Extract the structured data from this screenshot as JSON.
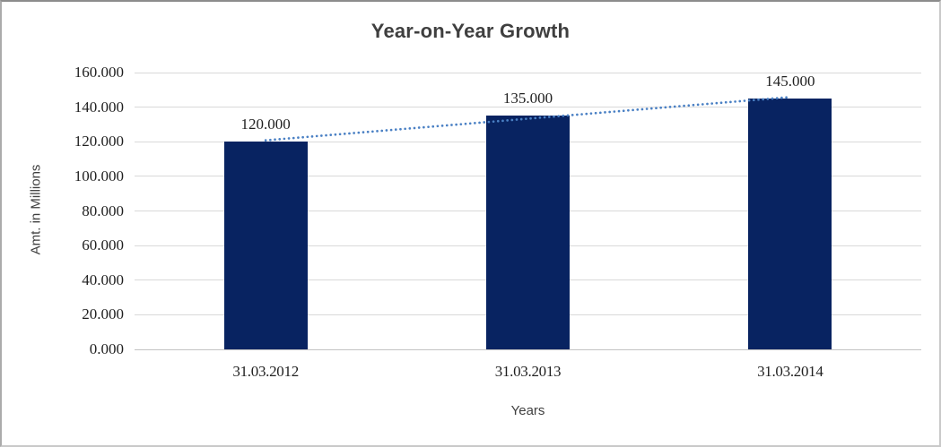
{
  "chart_data": {
    "type": "bar",
    "title": "Year-on-Year Growth",
    "xlabel": "Years",
    "ylabel": "Amt. in Millions",
    "categories": [
      "31.03.2012",
      "31.03.2013",
      "31.03.2014"
    ],
    "values": [
      120,
      135,
      145
    ],
    "value_labels": [
      "120.000",
      "135.000",
      "145.000"
    ],
    "ylim": [
      0,
      160
    ],
    "ytick_step": 20,
    "ytick_labels": [
      "0.000",
      "20.000",
      "40.000",
      "60.000",
      "80.000",
      "100.000",
      "120.000",
      "140.000",
      "160.000"
    ],
    "grid": true,
    "legend": false,
    "trendline": {
      "type": "linear",
      "style": "dotted",
      "fit_values": [
        120.833,
        133.333,
        145.833
      ]
    },
    "colors": {
      "bar": "#082361",
      "trendline": "#4a80c4",
      "gridline": "#d9d9d9",
      "title_text": "#3f3f3f",
      "tick_text": "#1f1f1f"
    }
  }
}
